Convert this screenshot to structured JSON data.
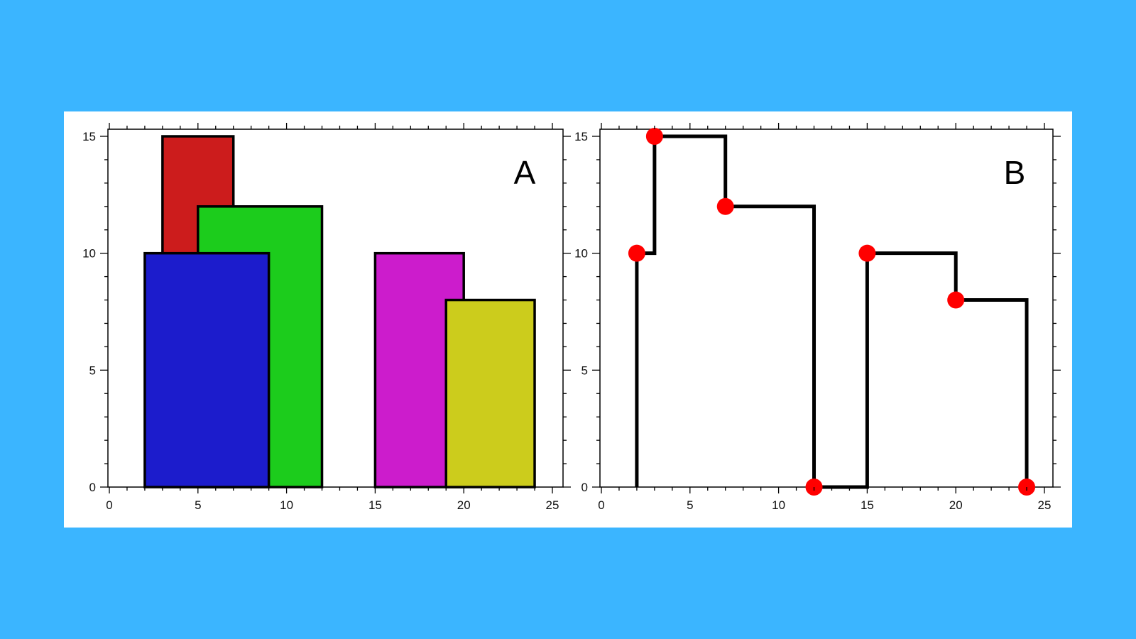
{
  "background_color": "#3bb5ff",
  "chart_data": [
    {
      "id": "A",
      "type": "bar",
      "subtype": "overlapping-rectangles",
      "panel_label": "A",
      "xlabel": "",
      "ylabel": "",
      "xlim": [
        0,
        25
      ],
      "ylim": [
        0,
        15
      ],
      "x_ticks": [
        0,
        5,
        10,
        15,
        20,
        25
      ],
      "y_ticks": [
        0,
        5,
        10,
        15
      ],
      "grid": false,
      "legend": "none",
      "rectangles": [
        {
          "x0": 3,
          "x1": 7,
          "height": 15,
          "color": "#cc1c1c"
        },
        {
          "x0": 5,
          "x1": 12,
          "height": 12,
          "color": "#1ccc1c"
        },
        {
          "x0": 2,
          "x1": 9,
          "height": 10,
          "color": "#1c1ccc"
        },
        {
          "x0": 15,
          "x1": 20,
          "height": 10,
          "color": "#cc1ccc"
        },
        {
          "x0": 19,
          "x1": 24,
          "height": 8,
          "color": "#cccc1c"
        }
      ]
    },
    {
      "id": "B",
      "type": "line",
      "subtype": "skyline-step",
      "panel_label": "B",
      "xlabel": "",
      "ylabel": "",
      "xlim": [
        0,
        25
      ],
      "ylim": [
        0,
        15
      ],
      "x_ticks": [
        0,
        5,
        10,
        15,
        20,
        25
      ],
      "y_ticks": [
        0,
        5,
        10,
        15
      ],
      "grid": false,
      "legend": "none",
      "line_color": "#000000",
      "marker_color": "#ff0000",
      "step_path": [
        [
          2,
          0
        ],
        [
          2,
          10
        ],
        [
          3,
          10
        ],
        [
          3,
          15
        ],
        [
          7,
          15
        ],
        [
          7,
          12
        ],
        [
          12,
          12
        ],
        [
          12,
          0
        ],
        [
          15,
          0
        ],
        [
          15,
          10
        ],
        [
          20,
          10
        ],
        [
          20,
          8
        ],
        [
          24,
          8
        ],
        [
          24,
          0
        ]
      ],
      "key_points": [
        [
          2,
          10
        ],
        [
          3,
          15
        ],
        [
          7,
          12
        ],
        [
          12,
          0
        ],
        [
          15,
          10
        ],
        [
          20,
          8
        ],
        [
          24,
          0
        ]
      ]
    }
  ]
}
